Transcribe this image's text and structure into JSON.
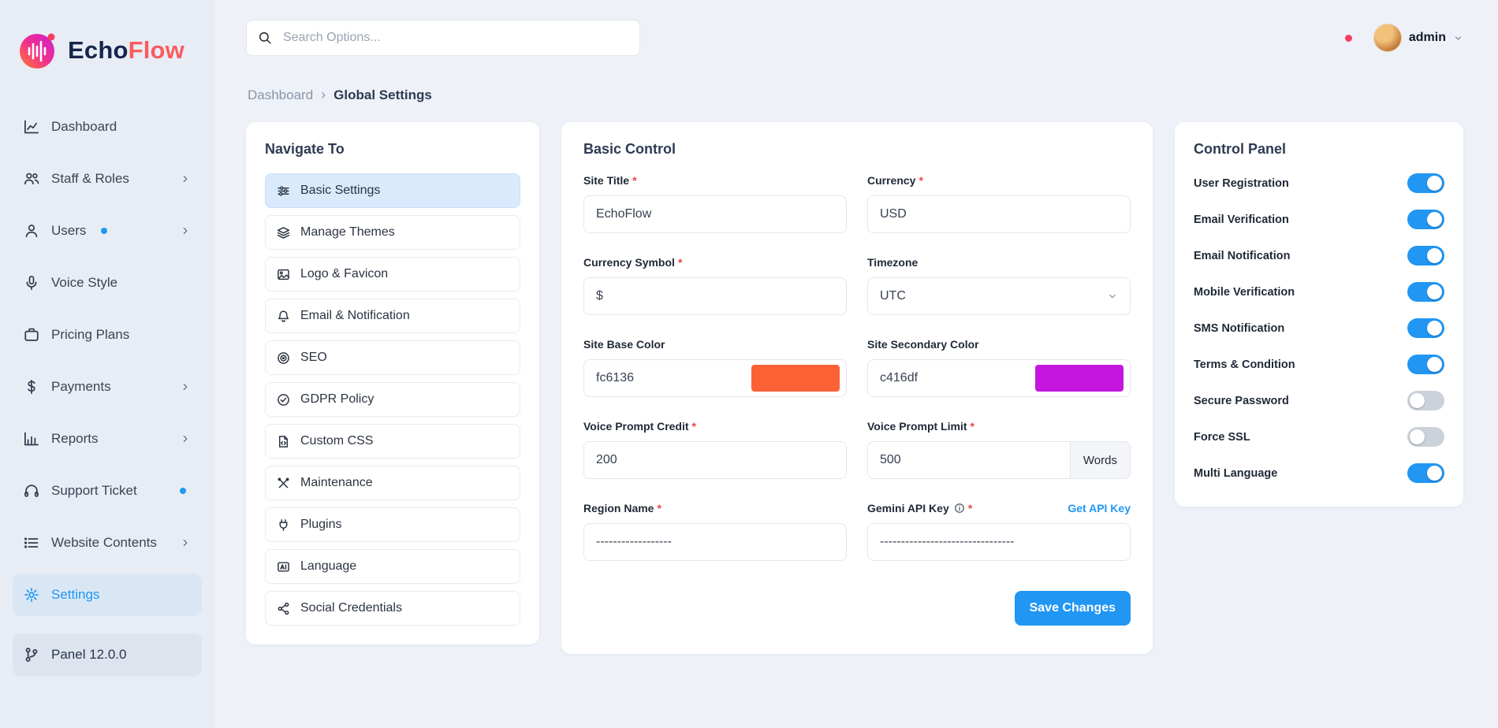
{
  "colors": {
    "accent": "#2196f3",
    "base_color": "#fc6136",
    "secondary_color": "#c416df"
  },
  "brand": {
    "name_primary": "Echo",
    "name_secondary": "Flow"
  },
  "topbar": {
    "search_placeholder": "Search Options...",
    "user_name": "admin",
    "icons": [
      "globe-icon",
      "brush-icon",
      "bell-icon"
    ]
  },
  "breadcrumb": {
    "items": [
      "Dashboard",
      "Global Settings"
    ],
    "separator": "›"
  },
  "sidebar": {
    "items": [
      {
        "label": "Dashboard",
        "icon": "chart-line",
        "chevron": false,
        "active": false
      },
      {
        "label": "Staff & Roles",
        "icon": "staff",
        "chevron": true
      },
      {
        "label": "Users",
        "icon": "user",
        "chevron": true,
        "dot": true
      },
      {
        "label": "Voice Style",
        "icon": "microphone"
      },
      {
        "label": "Pricing Plans",
        "icon": "briefcase"
      },
      {
        "label": "Payments",
        "icon": "dollar",
        "chevron": true
      },
      {
        "label": "Reports",
        "icon": "report",
        "chevron": true
      },
      {
        "label": "Support Ticket",
        "icon": "headset",
        "dot": true
      },
      {
        "label": "Website Contents",
        "icon": "list",
        "chevron": true
      },
      {
        "label": "Settings",
        "icon": "gear",
        "active": true
      },
      {
        "label": "Panel 12.0.0",
        "icon": "branch",
        "pill": true
      }
    ]
  },
  "navigate_card": {
    "title": "Navigate To",
    "items": [
      {
        "label": "Basic Settings",
        "icon": "sliders",
        "active": true
      },
      {
        "label": "Manage Themes",
        "icon": "layers"
      },
      {
        "label": "Logo & Favicon",
        "icon": "image"
      },
      {
        "label": "Email & Notification",
        "icon": "bell"
      },
      {
        "label": "SEO",
        "icon": "seo"
      },
      {
        "label": "GDPR Policy",
        "icon": "check-circle"
      },
      {
        "label": "Custom CSS",
        "icon": "file-code"
      },
      {
        "label": "Maintenance",
        "icon": "tools"
      },
      {
        "label": "Plugins",
        "icon": "plug"
      },
      {
        "label": "Language",
        "icon": "language"
      },
      {
        "label": "Social Credentials",
        "icon": "share"
      }
    ]
  },
  "basic_control": {
    "title": "Basic Control",
    "save_label": "Save Changes",
    "fields": {
      "site_title": {
        "label": "Site Title",
        "required": "*",
        "value": "EchoFlow"
      },
      "currency": {
        "label": "Currency",
        "required": "*",
        "value": "USD"
      },
      "currency_symbol": {
        "label": "Currency Symbol",
        "required": "*",
        "value": "$"
      },
      "timezone": {
        "label": "Timezone",
        "value": "UTC"
      },
      "site_base_color": {
        "label": "Site Base Color",
        "value": "fc6136",
        "swatch": "#fc6136"
      },
      "site_secondary_color": {
        "label": "Site Secondary Color",
        "value": "c416df",
        "swatch": "#c416df"
      },
      "voice_prompt_credit": {
        "label": "Voice Prompt Credit",
        "required": "*",
        "value": "200"
      },
      "voice_prompt_limit": {
        "label": "Voice Prompt Limit",
        "required": "*",
        "value": "500",
        "suffix": "Words"
      },
      "region_name": {
        "label": "Region Name",
        "required": "*",
        "value": "------------------"
      },
      "gemini_api_key": {
        "label": "Gemini API Key",
        "required": "*",
        "value": "--------------------------------",
        "link": "Get API Key"
      }
    }
  },
  "control_panel": {
    "title": "Control Panel",
    "toggles": [
      {
        "label": "User Registration",
        "on": true
      },
      {
        "label": "Email Verification",
        "on": true
      },
      {
        "label": "Email Notification",
        "on": true
      },
      {
        "label": "Mobile Verification",
        "on": true
      },
      {
        "label": "SMS Notification",
        "on": true
      },
      {
        "label": "Terms & Condition",
        "on": true
      },
      {
        "label": "Secure Password",
        "on": false
      },
      {
        "label": "Force SSL",
        "on": false
      },
      {
        "label": "Multi Language",
        "on": true
      }
    ]
  }
}
